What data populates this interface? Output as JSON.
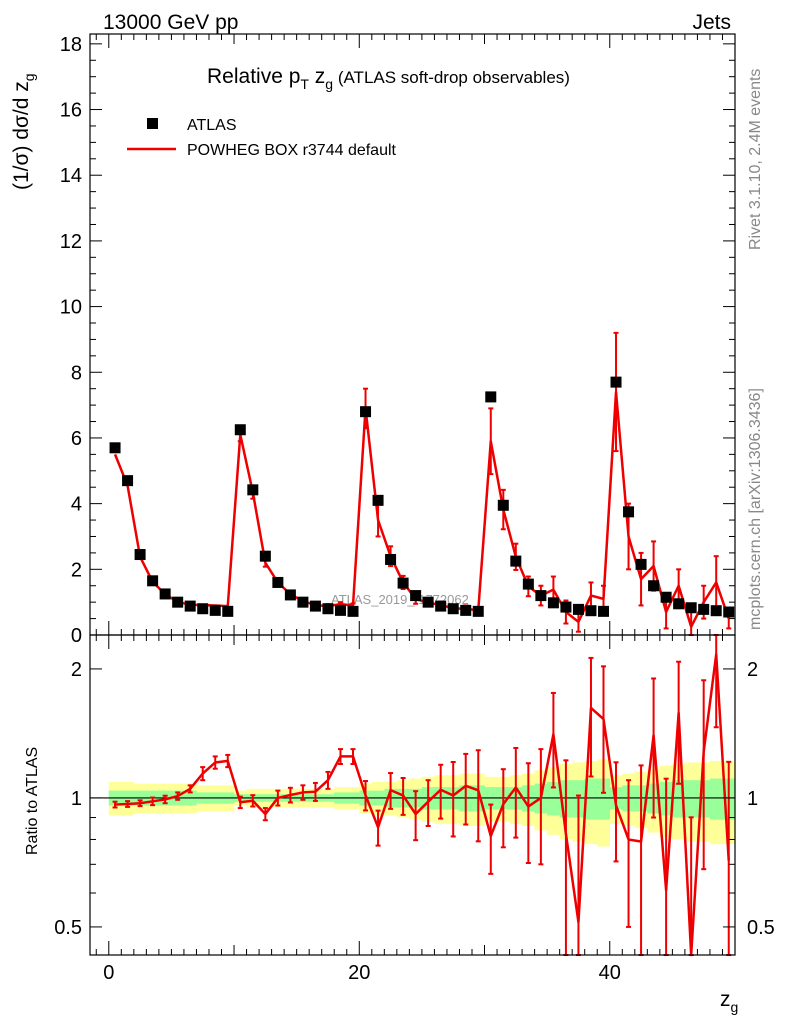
{
  "header": {
    "energy": "13000 GeV pp",
    "category": "Jets"
  },
  "side": {
    "rivet": "Rivet 3.1.10,  2.4M events",
    "mcplots": "mcplots.cern.ch [arXiv:1306.3436]"
  },
  "chart_data": {
    "type": "line",
    "title_main": "Relative p",
    "title_sub_T": "T",
    "title_zg": " z",
    "title_sub_g": "g",
    "title_rest": " (ATLAS soft-drop observables)",
    "watermark": "ATLAS_2019_I1772062",
    "ylabel_main": "(1/σ) dσ/d z",
    "ylabel_sub": "g",
    "xlabel": "z",
    "xlabel_sub": "g",
    "ratio_ylabel": "Ratio to ATLAS",
    "xlim": [
      -1.5,
      50
    ],
    "ylim": [
      0,
      18.3
    ],
    "ratio_ylim": [
      0.43,
      2.4
    ],
    "x_ticks": [
      0,
      20,
      40
    ],
    "y_ticks": [
      0,
      2,
      4,
      6,
      8,
      10,
      12,
      14,
      16,
      18
    ],
    "ratio_ticks": [
      0.5,
      1,
      2
    ],
    "ratio_tick_labels": [
      "0.5",
      "1",
      "2"
    ],
    "legend": [
      {
        "label": "ATLAS",
        "style": "marker"
      },
      {
        "label": "POWHEG BOX r3744 default",
        "style": "line",
        "color": "#ee0000"
      }
    ],
    "x": [
      0.5,
      1.5,
      2.5,
      3.5,
      4.5,
      5.5,
      6.5,
      7.5,
      8.5,
      9.5,
      10.5,
      11.5,
      12.5,
      13.5,
      14.5,
      15.5,
      16.5,
      17.5,
      18.5,
      19.5,
      20.5,
      21.5,
      22.5,
      23.5,
      24.5,
      25.5,
      26.5,
      27.5,
      28.5,
      29.5,
      30.5,
      31.5,
      32.5,
      33.5,
      34.5,
      35.5,
      36.5,
      37.5,
      38.5,
      39.5,
      40.5,
      41.5,
      42.5,
      43.5,
      44.5,
      45.5,
      46.5,
      47.5,
      48.5,
      49.5
    ],
    "series": [
      {
        "name": "ATLAS",
        "values": [
          5.7,
          4.7,
          2.45,
          1.65,
          1.25,
          1.0,
          0.88,
          0.8,
          0.75,
          0.72,
          6.25,
          4.42,
          2.4,
          1.6,
          1.22,
          1.0,
          0.88,
          0.8,
          0.75,
          0.72,
          6.8,
          4.1,
          2.3,
          1.58,
          1.2,
          1.0,
          0.88,
          0.8,
          0.75,
          0.72,
          7.25,
          3.95,
          2.25,
          1.55,
          1.2,
          0.98,
          0.85,
          0.78,
          0.74,
          0.72,
          7.7,
          3.75,
          2.15,
          1.5,
          1.15,
          0.95,
          0.83,
          0.78,
          0.74,
          0.7
        ]
      },
      {
        "name": "POWHEG BOX r3744 default",
        "values": [
          5.5,
          4.55,
          2.38,
          1.62,
          1.24,
          1.01,
          0.92,
          0.91,
          0.9,
          0.88,
          6.1,
          4.35,
          2.2,
          1.6,
          1.24,
          1.03,
          0.91,
          0.88,
          0.94,
          0.9,
          6.9,
          3.5,
          2.4,
          1.6,
          1.1,
          0.98,
          0.92,
          0.81,
          0.8,
          0.75,
          5.9,
          3.82,
          2.38,
          1.48,
          1.2,
          1.38,
          0.7,
          0.4,
          1.2,
          1.1,
          7.4,
          3.0,
          1.7,
          2.1,
          0.7,
          1.5,
          0.25,
          1.0,
          1.6,
          0.5
        ],
        "errors": [
          0.03,
          0.03,
          0.03,
          0.03,
          0.03,
          0.03,
          0.03,
          0.03,
          0.03,
          0.03,
          0.2,
          0.2,
          0.12,
          0.06,
          0.06,
          0.06,
          0.06,
          0.06,
          0.06,
          0.06,
          0.6,
          0.5,
          0.3,
          0.2,
          0.15,
          0.1,
          0.1,
          0.1,
          0.1,
          0.1,
          1.0,
          0.6,
          0.4,
          0.3,
          0.3,
          0.4,
          0.35,
          0.3,
          0.4,
          0.4,
          1.8,
          1.0,
          0.8,
          0.75,
          0.5,
          0.5,
          0.5,
          0.5,
          0.8,
          0.3
        ]
      }
    ],
    "ratio": {
      "values": [
        0.965,
        0.968,
        0.972,
        0.982,
        0.992,
        1.01,
        1.05,
        1.14,
        1.21,
        1.22,
        0.977,
        0.985,
        0.917,
        1.0,
        1.016,
        1.03,
        1.034,
        1.1,
        1.25,
        1.25,
        1.015,
        0.854,
        1.043,
        1.013,
        0.917,
        0.98,
        1.045,
        1.013,
        1.067,
        1.042,
        0.815,
        0.967,
        1.058,
        0.955,
        1.0,
        1.408,
        0.824,
        0.513,
        1.622,
        1.528,
        0.961,
        0.8,
        0.791,
        1.4,
        0.609,
        1.579,
        0.301,
        1.282,
        2.162,
        0.714
      ],
      "errors": [
        0.015,
        0.015,
        0.015,
        0.02,
        0.02,
        0.02,
        0.02,
        0.04,
        0.04,
        0.04,
        0.03,
        0.03,
        0.03,
        0.04,
        0.04,
        0.04,
        0.05,
        0.05,
        0.05,
        0.05,
        0.08,
        0.08,
        0.1,
        0.1,
        0.12,
        0.12,
        0.15,
        0.2,
        0.2,
        0.25,
        0.15,
        0.2,
        0.25,
        0.25,
        0.3,
        0.35,
        0.4,
        0.5,
        0.5,
        0.5,
        0.25,
        0.3,
        0.4,
        0.5,
        0.5,
        0.5,
        0.6,
        0.6,
        0.7,
        0.5
      ],
      "band_yellow": [
        0.09,
        0.09,
        0.08,
        0.08,
        0.08,
        0.08,
        0.08,
        0.07,
        0.07,
        0.07,
        0.04,
        0.05,
        0.05,
        0.05,
        0.05,
        0.05,
        0.05,
        0.05,
        0.06,
        0.06,
        0.08,
        0.09,
        0.09,
        0.1,
        0.11,
        0.12,
        0.13,
        0.13,
        0.14,
        0.14,
        0.12,
        0.12,
        0.13,
        0.14,
        0.16,
        0.18,
        0.2,
        0.21,
        0.22,
        0.23,
        0.13,
        0.14,
        0.15,
        0.17,
        0.19,
        0.2,
        0.21,
        0.21,
        0.22,
        0.22
      ],
      "band_green": [
        0.04,
        0.04,
        0.04,
        0.04,
        0.04,
        0.04,
        0.04,
        0.03,
        0.03,
        0.03,
        0.02,
        0.02,
        0.02,
        0.02,
        0.02,
        0.02,
        0.02,
        0.02,
        0.03,
        0.03,
        0.04,
        0.04,
        0.05,
        0.05,
        0.05,
        0.06,
        0.06,
        0.06,
        0.07,
        0.07,
        0.06,
        0.06,
        0.06,
        0.07,
        0.08,
        0.09,
        0.1,
        0.1,
        0.11,
        0.11,
        0.06,
        0.07,
        0.07,
        0.08,
        0.09,
        0.1,
        0.1,
        0.1,
        0.11,
        0.11
      ]
    }
  },
  "colors": {
    "mc": "#ee0000",
    "data": "#000000",
    "band_yellow": "#ffff99",
    "band_green": "#99ff99",
    "side": "#888888"
  }
}
